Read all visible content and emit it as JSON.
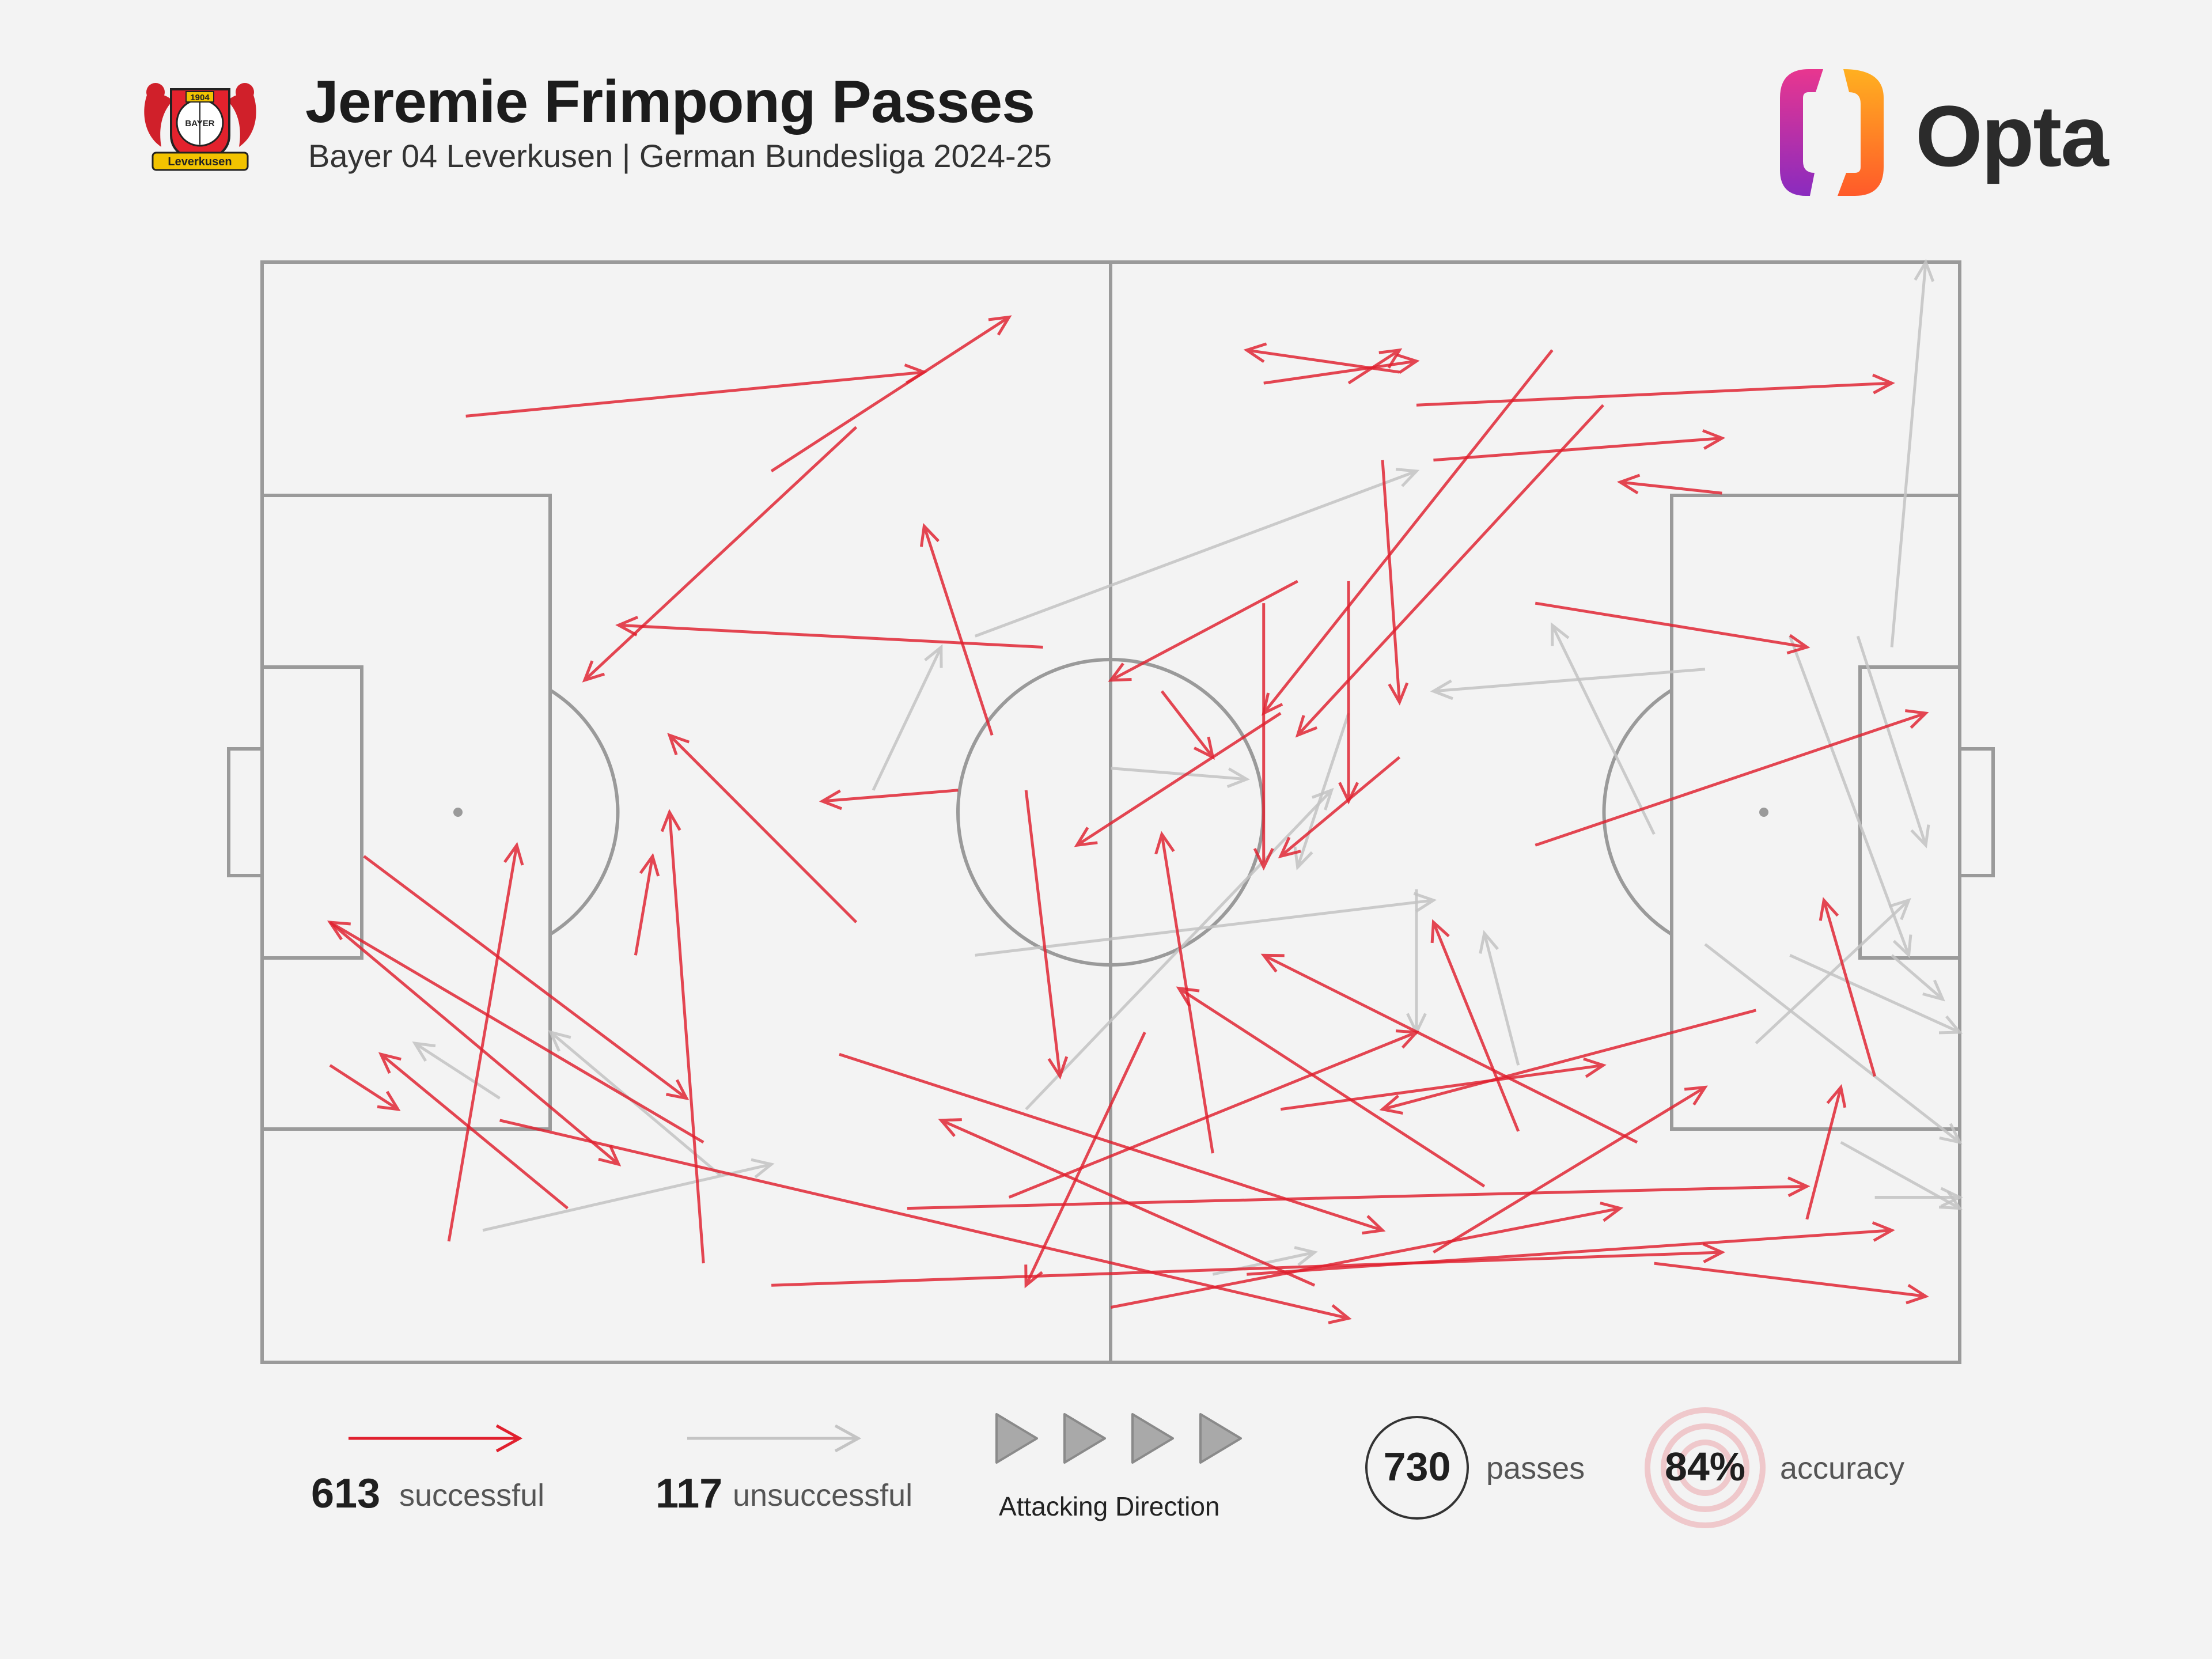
{
  "header": {
    "title": "Jeremie Frimpong Passes",
    "subtitle": "Bayer 04 Leverkusen | German Bundesliga 2024-25",
    "crest": {
      "year": "1904",
      "name": "BAYER",
      "banner": "Leverkusen"
    },
    "brand": "Opta"
  },
  "legend": {
    "successful_count": "613",
    "successful_label": "successful",
    "unsuccessful_count": "117",
    "unsuccessful_label": "unsuccessful",
    "direction_label": "Attacking Direction",
    "passes_count": "730",
    "passes_label": "passes",
    "accuracy_value": "84%",
    "accuracy_label": "accuracy"
  },
  "colors": {
    "successful": "#e0202e",
    "unsuccessful": "#c4c4c4",
    "pitch_lines": "#9a9a9a",
    "background": "#f3f3f3"
  },
  "chart_data": {
    "type": "pass_map",
    "title": "Jeremie Frimpong Passes",
    "subtitle": "Bayer 04 Leverkusen | German Bundesliga 2024-25",
    "attacking_direction": "left-to-right",
    "coordinate_system": "pitch length 0-100 (own goal to opposition goal), width 0-100 (top touchline to bottom touchline)",
    "xlim": [
      0,
      100
    ],
    "ylim": [
      0,
      100
    ],
    "totals": {
      "passes": 730,
      "successful": 613,
      "unsuccessful": 117,
      "accuracy_pct": 84
    },
    "series": [
      {
        "name": "successful",
        "count": 613,
        "passes_sample": [
          [
            12,
            14,
            39,
            10
          ],
          [
            30,
            19,
            44,
            5
          ],
          [
            35,
            15,
            19,
            38
          ],
          [
            46,
            35,
            21,
            33
          ],
          [
            43,
            43,
            39,
            24
          ],
          [
            60,
            41,
            48,
            53
          ],
          [
            59,
            31,
            59,
            55
          ],
          [
            41,
            48,
            33,
            49
          ],
          [
            64,
            11,
            67,
            8
          ],
          [
            67,
            10,
            58,
            8
          ],
          [
            59,
            11,
            68,
            9
          ],
          [
            68,
            13,
            96,
            11
          ],
          [
            69,
            18,
            86,
            16
          ],
          [
            86,
            21,
            80,
            20
          ],
          [
            76,
            8,
            59,
            41
          ],
          [
            79,
            13,
            61,
            43
          ],
          [
            61,
            29,
            50,
            38
          ],
          [
            66,
            18,
            67,
            40
          ],
          [
            64,
            29,
            64,
            49
          ],
          [
            75,
            53,
            98,
            41
          ],
          [
            75,
            31,
            91,
            35
          ],
          [
            53,
            39,
            56,
            45
          ],
          [
            45,
            48,
            47,
            74
          ],
          [
            67,
            45,
            60,
            54
          ],
          [
            4,
            73,
            8,
            77
          ],
          [
            4,
            60,
            21,
            82
          ],
          [
            6,
            54,
            25,
            76
          ],
          [
            11,
            89,
            15,
            53
          ],
          [
            22,
            63,
            23,
            54
          ],
          [
            26,
            91,
            24,
            50
          ],
          [
            35,
            60,
            24,
            43
          ],
          [
            56,
            81,
            53,
            52
          ],
          [
            74,
            79,
            69,
            60
          ],
          [
            91,
            87,
            93,
            75
          ],
          [
            95,
            74,
            92,
            58
          ],
          [
            82,
            91,
            98,
            94
          ],
          [
            14,
            78,
            64,
            96
          ],
          [
            30,
            93,
            86,
            90
          ],
          [
            38,
            86,
            91,
            84
          ],
          [
            50,
            95,
            80,
            86
          ],
          [
            58,
            92,
            96,
            88
          ],
          [
            44,
            85,
            68,
            70
          ],
          [
            60,
            77,
            79,
            73
          ],
          [
            72,
            84,
            54,
            66
          ],
          [
            34,
            72,
            66,
            88
          ],
          [
            26,
            80,
            4,
            60
          ],
          [
            18,
            86,
            7,
            72
          ],
          [
            69,
            90,
            85,
            75
          ],
          [
            81,
            80,
            59,
            63
          ],
          [
            88,
            68,
            66,
            77
          ],
          [
            52,
            70,
            45,
            93
          ],
          [
            62,
            93,
            40,
            78
          ]
        ]
      },
      {
        "name": "unsuccessful",
        "count": 117,
        "passes_sample": [
          [
            42,
            34,
            68,
            19
          ],
          [
            36,
            48,
            40,
            35
          ],
          [
            50,
            46,
            58,
            47
          ],
          [
            45,
            77,
            63,
            48
          ],
          [
            13,
            88,
            30,
            82
          ],
          [
            68,
            57,
            68,
            70
          ],
          [
            74,
            73,
            72,
            61
          ],
          [
            82,
            52,
            76,
            33
          ],
          [
            90,
            34,
            97,
            63
          ],
          [
            94,
            34,
            98,
            53
          ],
          [
            96,
            35,
            98,
            0
          ],
          [
            90,
            63,
            100,
            70
          ],
          [
            85,
            62,
            100,
            80
          ],
          [
            88,
            71,
            97,
            58
          ],
          [
            93,
            80,
            100,
            86
          ],
          [
            95,
            85,
            100,
            85
          ],
          [
            85,
            37,
            69,
            39
          ],
          [
            64,
            41,
            61,
            55
          ],
          [
            42,
            63,
            69,
            58
          ],
          [
            27,
            83,
            17,
            70
          ],
          [
            14,
            76,
            9,
            71
          ],
          [
            96,
            63,
            99,
            67
          ],
          [
            56,
            92,
            62,
            90
          ]
        ]
      }
    ]
  }
}
